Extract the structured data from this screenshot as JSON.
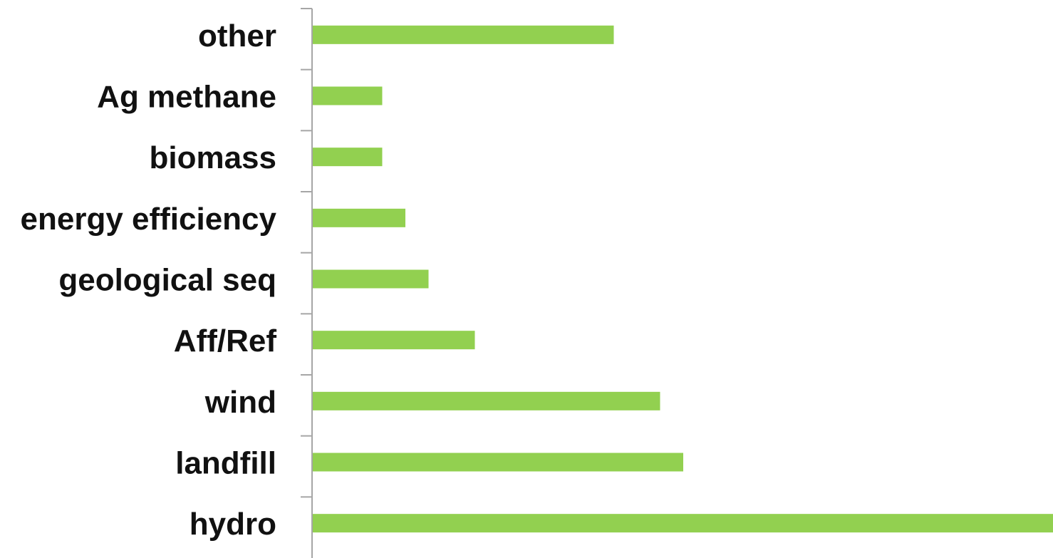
{
  "chart_data": {
    "type": "bar",
    "orientation": "horizontal",
    "title": "",
    "xlabel": "",
    "ylabel": "",
    "categories": [
      "other",
      "Ag methane",
      "biomass",
      "energy efficiency",
      "geological seq",
      "Aff/Ref",
      "wind",
      "landfill",
      "hydro"
    ],
    "values": [
      13,
      3,
      3,
      4,
      5,
      7,
      15,
      16,
      32
    ],
    "xlim": [
      0,
      32
    ],
    "grid": false,
    "legend": "none",
    "bar_color": "#92d050",
    "axis_color": "#a6a6a6"
  }
}
